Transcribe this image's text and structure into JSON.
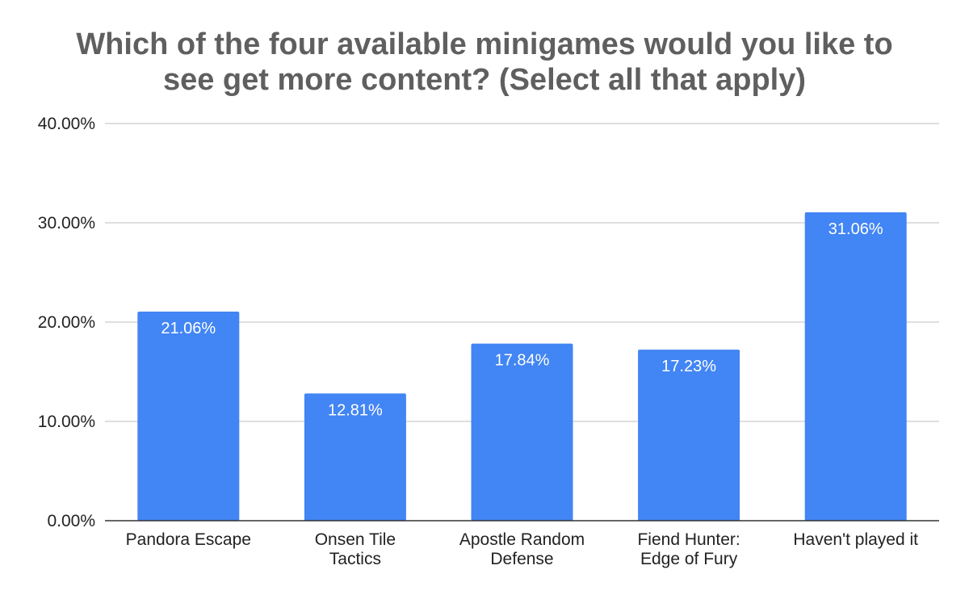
{
  "chart_data": {
    "type": "bar",
    "title_lines": [
      "Which of the four available minigames would you like to",
      "see get more content? (Select all that apply)"
    ],
    "categories": [
      [
        "Pandora Escape"
      ],
      [
        "Onsen Tile",
        "Tactics"
      ],
      [
        "Apostle Random",
        "Defense"
      ],
      [
        "Fiend Hunter:",
        "Edge of Fury"
      ],
      [
        "Haven't played it"
      ]
    ],
    "values": [
      21.06,
      12.81,
      17.84,
      17.23,
      31.06
    ],
    "data_labels": [
      "21.06%",
      "12.81%",
      "17.84%",
      "17.23%",
      "31.06%"
    ],
    "yticks": [
      0,
      10,
      20,
      30,
      40
    ],
    "ytick_labels": [
      "0.00%",
      "10.00%",
      "20.00%",
      "30.00%",
      "40.00%"
    ],
    "ylim": [
      0,
      40
    ],
    "grid": true,
    "legend": "none",
    "bar_color": "#4285f4",
    "gridline_color": "#cccccc",
    "axis_color": "#333333",
    "title_color": "#5f5f5f"
  }
}
